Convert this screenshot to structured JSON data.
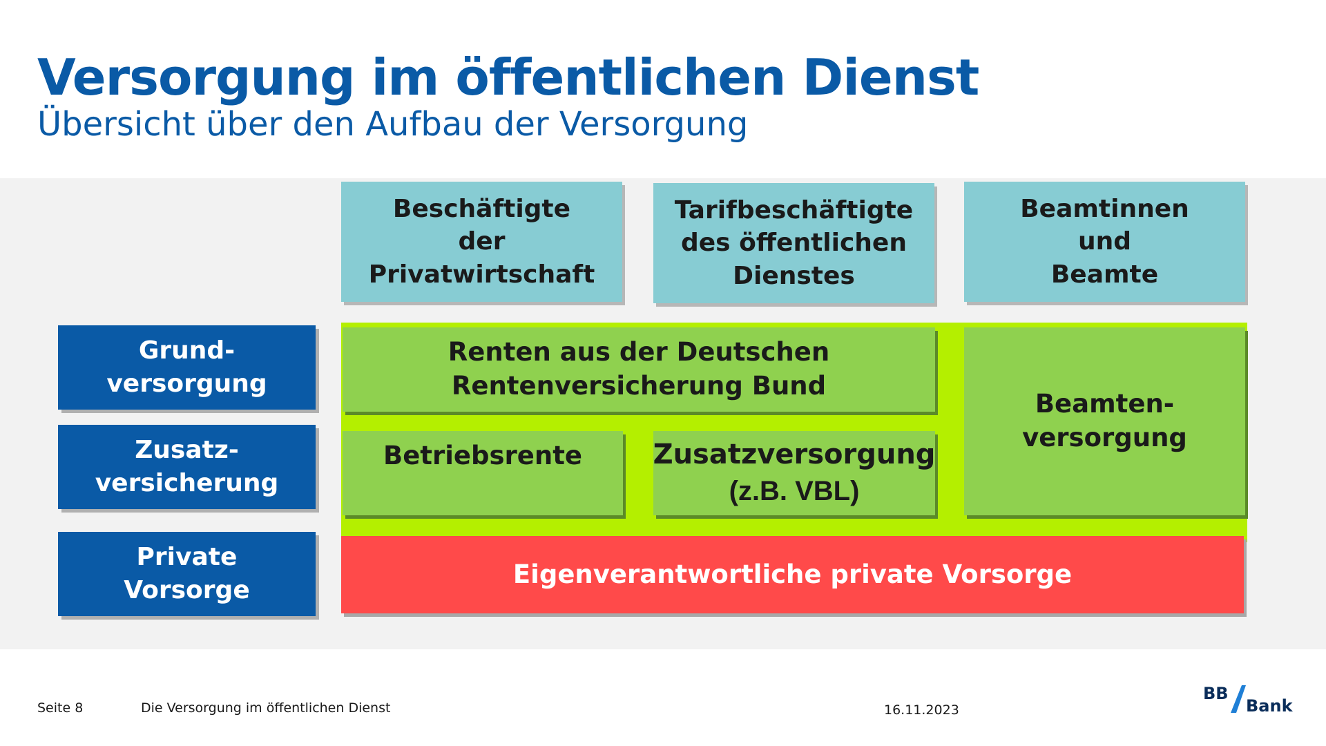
{
  "header": {
    "title": "Versorgung im öffentlichen Dienst",
    "subtitle": "Übersicht über den Aufbau der Versorgung"
  },
  "groups": {
    "privatwirtschaft": "Beschäftigte\nder\nPrivatwirtschaft",
    "tarif": "Tarifbeschäftigte\ndes öffentlichen\nDienstes",
    "beamte": "Beamtinnen\nund\nBeamte"
  },
  "rows": {
    "grund": "Grund-\nversorgung",
    "zusatz": "Zusatz-\nversicherung",
    "privat": "Private\nVorsorge"
  },
  "cells": {
    "renten": "Renten aus der Deutschen\nRentenversicherung Bund",
    "betriebsrente": "Betriebsrente",
    "zusatzversorgung": "Zusatzversorgung",
    "zusatzversorgung_note": "(z.B. VBL)",
    "beamtenversorgung": "Beamten-\nversorgung",
    "private_vorsorge": "Eigenverantwortliche private Vorsorge"
  },
  "footer": {
    "page": "Seite 8",
    "doc_title": "Die Versorgung im öffentlichen Dienst",
    "date": "16.11.2023",
    "logo_letters": "BB",
    "logo_word": "Bank"
  },
  "colors": {
    "brand_blue": "#0a5aa6",
    "teal": "#87ccd3",
    "green": "#8fd14f",
    "lime": "#b4ef00",
    "red": "#ff4a4a"
  }
}
